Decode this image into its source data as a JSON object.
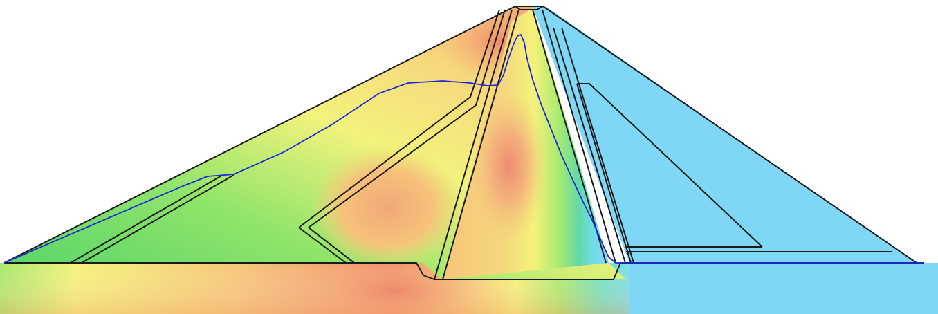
{
  "figure": {
    "kind": "dam-cross-section-contour",
    "description_visible_text": "",
    "colors": {
      "background": "#ffffff",
      "outline": "#1a1a1a",
      "phreatic_line": "#1a1ad6",
      "downstream_fill": "#80d8f5",
      "contour_low": "#5fd66a",
      "contour_mid": "#f7f57a",
      "contour_high": "#f08a6a"
    }
  }
}
